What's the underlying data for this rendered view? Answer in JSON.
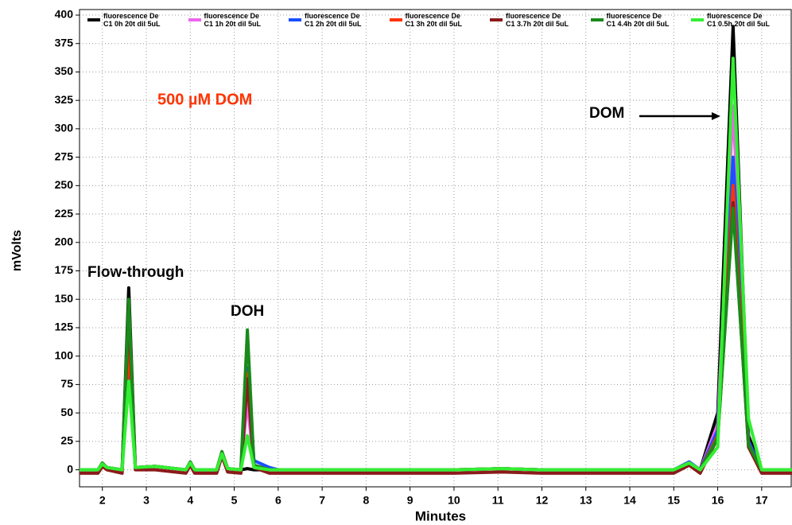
{
  "chart_data": {
    "type": "line",
    "x_label": "Minutes",
    "y_label": "mVolts",
    "annotations": [
      "500 µM DOM",
      "Flow-through",
      "DOH",
      "DOM"
    ],
    "xlim": [
      1.48,
      17.69
    ],
    "ylim": [
      -15,
      400
    ],
    "xticks": [
      2,
      3,
      4,
      5,
      6,
      7,
      8,
      9,
      10,
      11,
      12,
      13,
      14,
      15,
      16,
      17
    ],
    "yticks": [
      0,
      25,
      50,
      75,
      100,
      125,
      150,
      175,
      200,
      225,
      250,
      275,
      300,
      325,
      350,
      375,
      400
    ],
    "grid": true,
    "x": [
      1.48,
      1.9,
      2.0,
      2.1,
      2.45,
      2.6,
      2.75,
      3.2,
      3.9,
      4.0,
      4.1,
      4.6,
      4.72,
      4.85,
      5.15,
      5.3,
      5.45,
      5.8,
      6.0,
      8,
      10,
      11.1,
      12,
      14,
      15.0,
      15.35,
      15.6,
      16.0,
      16.35,
      16.7,
      17.0,
      17.69
    ],
    "series": [
      {
        "name": "fluorescence De\nC1 0h 20t dil 5uL",
        "color": "#000000",
        "values": [
          0,
          0,
          5,
          2,
          0,
          160,
          2,
          3,
          0,
          6,
          0,
          0,
          15,
          1,
          0,
          1,
          0,
          0,
          0,
          0,
          0,
          1,
          0,
          0,
          0,
          6,
          0,
          50,
          390,
          30,
          0,
          0
        ]
      },
      {
        "name": "fluorescence De\nC1 1h 20t dil 5uL",
        "color": "#ee66ee",
        "values": [
          0,
          0,
          5,
          2,
          0,
          130,
          2,
          3,
          0,
          6,
          0,
          0,
          15,
          1,
          0,
          60,
          2,
          0,
          0,
          0,
          0,
          1,
          0,
          0,
          0,
          6,
          0,
          40,
          320,
          25,
          0,
          0
        ]
      },
      {
        "name": "fluorescence De\nC1 2h 20t dil 5uL",
        "color": "#1a4fff",
        "values": [
          0,
          0,
          5,
          2,
          0,
          100,
          2,
          3,
          0,
          6,
          0,
          0,
          15,
          1,
          0,
          90,
          8,
          2,
          0,
          0,
          0,
          1,
          0,
          0,
          0,
          7,
          0,
          35,
          275,
          25,
          0,
          0
        ]
      },
      {
        "name": "fluorescence De\nC1 3h 20t dil 5uL",
        "color": "#ff3300",
        "values": [
          0,
          0,
          5,
          2,
          0,
          110,
          2,
          3,
          0,
          6,
          0,
          0,
          15,
          1,
          0,
          85,
          4,
          0,
          0,
          0,
          0,
          1,
          0,
          0,
          0,
          6,
          0,
          30,
          250,
          22,
          0,
          0
        ]
      },
      {
        "name": "fluorescence De\nC1 3.7h 20t dil 5uL",
        "color": "#8b1a1a",
        "values": [
          -3,
          -3,
          3,
          0,
          -3,
          140,
          0,
          0,
          -3,
          4,
          -3,
          -3,
          12,
          -2,
          -3,
          80,
          2,
          -3,
          -3,
          -3,
          -3,
          -2,
          -3,
          -3,
          -3,
          4,
          -3,
          28,
          235,
          20,
          -3,
          -3
        ]
      },
      {
        "name": "fluorescence De\nC1 4.4h 20t dil 5uL",
        "color": "#1a8a1a",
        "values": [
          0,
          0,
          6,
          2,
          0,
          150,
          2,
          3,
          0,
          7,
          0,
          0,
          16,
          1,
          0,
          123,
          4,
          0,
          0,
          0,
          0,
          1,
          0,
          0,
          0,
          6,
          0,
          28,
          230,
          22,
          0,
          0
        ]
      },
      {
        "name": "fluorescence De\nC1 0.5h 20t dil 5uL",
        "color": "#33ee33",
        "values": [
          0,
          0,
          5,
          2,
          0,
          78,
          2,
          3,
          0,
          6,
          0,
          0,
          14,
          1,
          0,
          30,
          2,
          0,
          0,
          0,
          0,
          1,
          0,
          0,
          0,
          6,
          0,
          20,
          362,
          45,
          0,
          0
        ]
      }
    ]
  }
}
